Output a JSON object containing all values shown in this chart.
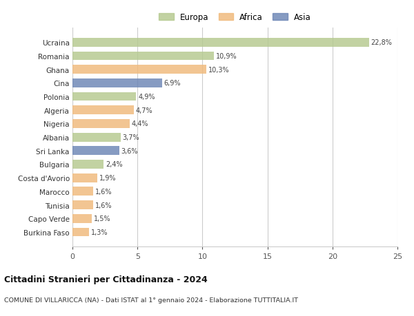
{
  "categories": [
    "Ucraina",
    "Romania",
    "Ghana",
    "Cina",
    "Polonia",
    "Algeria",
    "Nigeria",
    "Albania",
    "Sri Lanka",
    "Bulgaria",
    "Costa d'Avorio",
    "Marocco",
    "Tunisia",
    "Capo Verde",
    "Burkina Faso"
  ],
  "values": [
    22.8,
    10.9,
    10.3,
    6.9,
    4.9,
    4.7,
    4.4,
    3.7,
    3.6,
    2.4,
    1.9,
    1.6,
    1.6,
    1.5,
    1.3
  ],
  "labels": [
    "22,8%",
    "10,9%",
    "10,3%",
    "6,9%",
    "4,9%",
    "4,7%",
    "4,4%",
    "3,7%",
    "3,6%",
    "2,4%",
    "1,9%",
    "1,6%",
    "1,6%",
    "1,5%",
    "1,3%"
  ],
  "colors": [
    "#b5c98e",
    "#b5c98e",
    "#f0b97a",
    "#6b85b5",
    "#b5c98e",
    "#f0b97a",
    "#f0b97a",
    "#b5c98e",
    "#6b85b5",
    "#b5c98e",
    "#f0b97a",
    "#f0b97a",
    "#f0b97a",
    "#f0b97a",
    "#f0b97a"
  ],
  "legend_labels": [
    "Europa",
    "Africa",
    "Asia"
  ],
  "legend_colors": [
    "#b5c98e",
    "#f0b97a",
    "#6b85b5"
  ],
  "title": "Cittadini Stranieri per Cittadinanza - 2024",
  "subtitle": "COMUNE DI VILLARICCA (NA) - Dati ISTAT al 1° gennaio 2024 - Elaborazione TUTTITALIA.IT",
  "xlim": [
    0,
    25
  ],
  "xticks": [
    0,
    5,
    10,
    15,
    20,
    25
  ],
  "background_color": "#ffffff",
  "grid_color": "#cccccc",
  "bar_height": 0.65
}
